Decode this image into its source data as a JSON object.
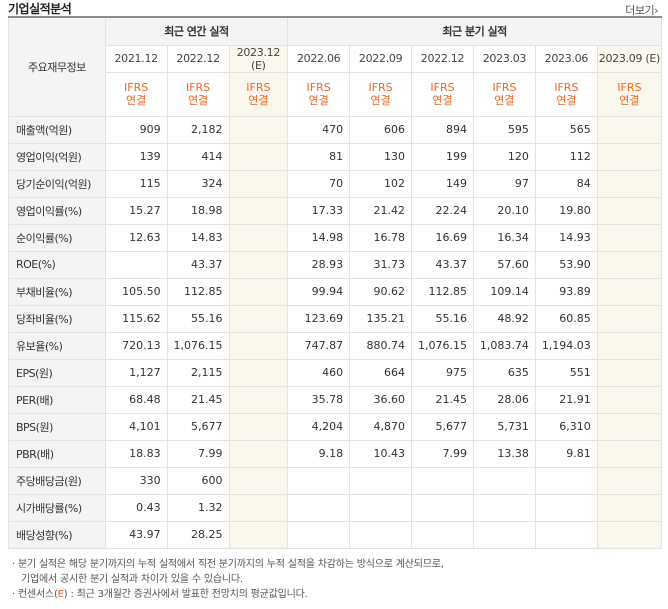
{
  "header": {
    "title": "기업실적분석",
    "more_label": "더보기"
  },
  "table": {
    "corner_label": "주요재무정보",
    "group_annual": "최근 연간 실적",
    "group_quarter": "최근 분기 실적",
    "annual_periods": [
      "2021.12",
      "2022.12",
      "2023.12 (E)"
    ],
    "quarter_periods": [
      "2022.06",
      "2022.09",
      "2022.12",
      "2023.03",
      "2023.06",
      "2023.09 (E)"
    ],
    "ifrs_line1": "IFRS",
    "ifrs_line2": "연결",
    "rows": [
      {
        "label": "매출액(억원)",
        "values": [
          "909",
          "2,182",
          "",
          "470",
          "606",
          "894",
          "595",
          "565",
          ""
        ]
      },
      {
        "label": "영업이익(억원)",
        "values": [
          "139",
          "414",
          "",
          "81",
          "130",
          "199",
          "120",
          "112",
          ""
        ]
      },
      {
        "label": "당기순이익(억원)",
        "values": [
          "115",
          "324",
          "",
          "70",
          "102",
          "149",
          "97",
          "84",
          ""
        ]
      },
      {
        "label": "영업이익률(%)",
        "values": [
          "15.27",
          "18.98",
          "",
          "17.33",
          "21.42",
          "22.24",
          "20.10",
          "19.80",
          ""
        ]
      },
      {
        "label": "순이익률(%)",
        "values": [
          "12.63",
          "14.83",
          "",
          "14.98",
          "16.78",
          "16.69",
          "16.34",
          "14.93",
          ""
        ]
      },
      {
        "label": "ROE(%)",
        "values": [
          "",
          "43.37",
          "",
          "28.93",
          "31.73",
          "43.37",
          "57.60",
          "53.90",
          ""
        ]
      },
      {
        "label": "부채비율(%)",
        "values": [
          "105.50",
          "112.85",
          "",
          "99.94",
          "90.62",
          "112.85",
          "109.14",
          "93.89",
          ""
        ]
      },
      {
        "label": "당좌비율(%)",
        "values": [
          "115.62",
          "55.16",
          "",
          "123.69",
          "135.21",
          "55.16",
          "48.92",
          "60.85",
          ""
        ]
      },
      {
        "label": "유보율(%)",
        "values": [
          "720.13",
          "1,076.15",
          "",
          "747.87",
          "880.74",
          "1,076.15",
          "1,083.74",
          "1,194.03",
          ""
        ]
      },
      {
        "label": "EPS(원)",
        "values": [
          "1,127",
          "2,115",
          "",
          "460",
          "664",
          "975",
          "635",
          "551",
          ""
        ]
      },
      {
        "label": "PER(배)",
        "values": [
          "68.48",
          "21.45",
          "",
          "35.78",
          "36.60",
          "21.45",
          "28.06",
          "21.91",
          ""
        ]
      },
      {
        "label": "BPS(원)",
        "values": [
          "4,101",
          "5,677",
          "",
          "4,204",
          "4,870",
          "5,677",
          "5,731",
          "6,310",
          ""
        ]
      },
      {
        "label": "PBR(배)",
        "values": [
          "18.83",
          "7.99",
          "",
          "9.18",
          "10.43",
          "7.99",
          "13.38",
          "9.81",
          ""
        ]
      },
      {
        "label": "주당배당금(원)",
        "values": [
          "330",
          "600",
          "",
          "",
          "",
          "",
          "",
          "",
          ""
        ]
      },
      {
        "label": "시가배당률(%)",
        "values": [
          "0.43",
          "1.32",
          "",
          "",
          "",
          "",
          "",
          "",
          ""
        ]
      },
      {
        "label": "배당성향(%)",
        "values": [
          "43.97",
          "28.25",
          "",
          "",
          "",
          "",
          "",
          "",
          ""
        ]
      }
    ]
  },
  "notes": {
    "line1": "· 분기 실적은 해당 분기까지의 누적 실적에서 직전 분기까지의 누적 실적을 차감하는 방식으로 계산되므로,",
    "line2": "기업에서 공시한 분기 실적과 차이가 있을 수 있습니다.",
    "line3_prefix": "· 컨센서스(",
    "line3_e": "E",
    "line3_suffix": ") : 최근 3개월간 증권사에서 발표한 전망치의 평균값입니다."
  }
}
